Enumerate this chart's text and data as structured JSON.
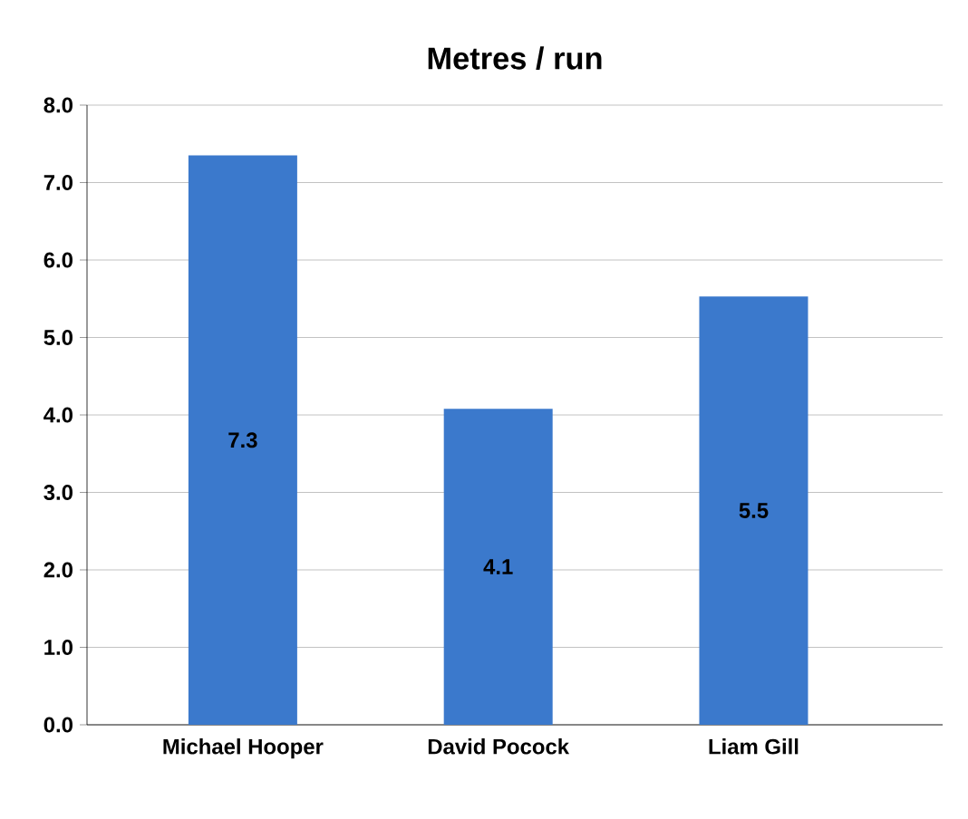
{
  "chart_data": {
    "type": "bar",
    "title": "Metres / run",
    "categories": [
      "Michael Hooper",
      "David Pocock",
      "Liam Gill"
    ],
    "values": [
      7.35,
      4.08,
      5.53
    ],
    "value_labels": [
      "7.3",
      "4.1",
      "5.5"
    ],
    "color": "#3b79cc",
    "ylim": [
      0,
      8
    ],
    "yticks": [
      {
        "value": 0,
        "label": "0.0"
      },
      {
        "value": 1,
        "label": "1.0"
      },
      {
        "value": 2,
        "label": "2.0"
      },
      {
        "value": 3,
        "label": "3.0"
      },
      {
        "value": 4,
        "label": "4.0"
      },
      {
        "value": 5,
        "label": "5.0"
      },
      {
        "value": 6,
        "label": "6.0"
      },
      {
        "value": 7,
        "label": "7.0"
      },
      {
        "value": 8,
        "label": "8.0"
      }
    ],
    "grid": "y"
  }
}
